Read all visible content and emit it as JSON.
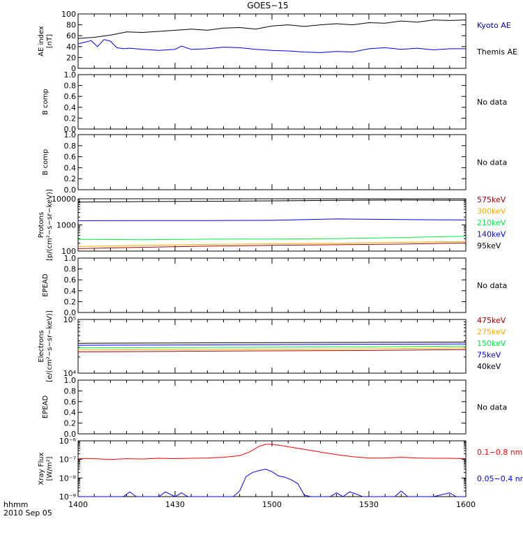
{
  "title": "GOES−15",
  "footer": {
    "time_format": "hhmm",
    "date": "2010 Sep 05"
  },
  "colors": {
    "black": "#000000",
    "blue": "#0000ff",
    "red": "#ff0000",
    "darkred": "#aa0000",
    "orange": "#ffaa00",
    "green": "#00ee44",
    "ae_kyoto": "#0000cc"
  },
  "no_data_text": "No data",
  "chart_data": [
    {
      "type": "line",
      "ylabel": [
        "AE index",
        "[nT]"
      ],
      "ylim": [
        0,
        100
      ],
      "yscale": "linear",
      "yticks": [
        0,
        20,
        40,
        60,
        80,
        100
      ],
      "ytick_labels": [
        "0",
        "20",
        "40",
        "60",
        "80",
        "100"
      ],
      "x_time": [
        "1400",
        "1430",
        "1500",
        "1530",
        "1600"
      ],
      "legend": [
        {
          "label": "Kyoto AE",
          "color": "#0000cc"
        },
        {
          "label": "Themis AE",
          "color": "#000000"
        }
      ],
      "series": [
        {
          "color": "#000000",
          "x": [
            1400,
            1405,
            1410,
            1415,
            1420,
            1425,
            1430,
            1435,
            1440,
            1445,
            1450,
            1455,
            1500,
            1505,
            1510,
            1515,
            1520,
            1525,
            1530,
            1535,
            1540,
            1545,
            1550,
            1555,
            1600
          ],
          "y": [
            55,
            57,
            61,
            67,
            66,
            68,
            70,
            72,
            70,
            74,
            75,
            72,
            78,
            80,
            77,
            80,
            82,
            80,
            84,
            83,
            87,
            85,
            89,
            88,
            89
          ]
        },
        {
          "color": "#0000ff",
          "x": [
            1400,
            1402,
            1404,
            1406,
            1408,
            1410,
            1412,
            1414,
            1416,
            1420,
            1425,
            1430,
            1432,
            1435,
            1440,
            1445,
            1450,
            1455,
            1500,
            1505,
            1510,
            1515,
            1520,
            1525,
            1530,
            1535,
            1540,
            1545,
            1550,
            1555,
            1600
          ],
          "y": [
            45,
            48,
            51,
            40,
            53,
            50,
            38,
            36,
            37,
            35,
            33,
            35,
            41,
            35,
            36,
            39,
            38,
            35,
            33,
            32,
            30,
            29,
            31,
            30,
            36,
            38,
            35,
            37,
            34,
            36,
            36
          ]
        }
      ]
    },
    {
      "type": "line",
      "ylabel": [
        "B comp"
      ],
      "ylim": [
        0,
        1
      ],
      "yscale": "linear",
      "yticks": [
        0,
        0.2,
        0.4,
        0.6,
        0.8,
        1.0
      ],
      "ytick_labels": [
        "0.0",
        "0.2",
        "0.4",
        "0.6",
        "0.8",
        "1.0"
      ],
      "x_time": [
        "1400",
        "1430",
        "1500",
        "1530",
        "1600"
      ],
      "no_data": true,
      "series": []
    },
    {
      "type": "line",
      "ylabel": [
        "B comp"
      ],
      "ylim": [
        0,
        1
      ],
      "yscale": "linear",
      "yticks": [
        0,
        0.2,
        0.4,
        0.6,
        0.8,
        1.0
      ],
      "ytick_labels": [
        "0.0",
        "0.2",
        "0.4",
        "0.6",
        "0.8",
        "1.0"
      ],
      "x_time": [
        "1400",
        "1430",
        "1500",
        "1530",
        "1600"
      ],
      "no_data": true,
      "series": []
    },
    {
      "type": "line",
      "ylabel": [
        "Protons",
        "[p/(cm²−s−sr−keV)]"
      ],
      "ylim": [
        100,
        10000
      ],
      "yscale": "log",
      "yticks": [
        100,
        1000,
        10000
      ],
      "ytick_labels": [
        "100",
        "1000",
        "10000"
      ],
      "x_time": [
        "1400",
        "1430",
        "1500",
        "1530",
        "1600"
      ],
      "legend": [
        {
          "label": "575keV",
          "color": "#aa0000"
        },
        {
          "label": "300keV",
          "color": "#ffaa00"
        },
        {
          "label": "210keV",
          "color": "#00ee44"
        },
        {
          "label": "140keV",
          "color": "#0000ff"
        },
        {
          "label": "95keV",
          "color": "#000000"
        }
      ],
      "series": [
        {
          "color": "#000000",
          "x": [
            1400,
            1420,
            1440,
            1500,
            1520,
            1540,
            1600
          ],
          "y": [
            7500,
            7800,
            8000,
            8300,
            8700,
            9000,
            8800
          ]
        },
        {
          "color": "#0000ff",
          "x": [
            1400,
            1420,
            1440,
            1500,
            1520,
            1540,
            1600
          ],
          "y": [
            1450,
            1460,
            1470,
            1500,
            1700,
            1600,
            1550
          ]
        },
        {
          "color": "#00ee44",
          "x": [
            1400,
            1420,
            1440,
            1500,
            1520,
            1540,
            1600
          ],
          "y": [
            280,
            270,
            285,
            290,
            300,
            330,
            370
          ]
        },
        {
          "color": "#ffaa00",
          "x": [
            1400,
            1420,
            1440,
            1500,
            1520,
            1540,
            1600
          ],
          "y": [
            150,
            165,
            180,
            190,
            200,
            215,
            235
          ]
        },
        {
          "color": "#aa0000",
          "x": [
            1400,
            1420,
            1440,
            1500,
            1520,
            1540,
            1600
          ],
          "y": [
            125,
            140,
            155,
            165,
            175,
            185,
            205
          ]
        }
      ]
    },
    {
      "type": "line",
      "ylabel": [
        "EPEAD"
      ],
      "ylim": [
        0,
        1
      ],
      "yscale": "linear",
      "yticks": [
        0,
        0.2,
        0.4,
        0.6,
        0.8,
        1.0
      ],
      "ytick_labels": [
        "0.0",
        "0.2",
        "0.4",
        "0.6",
        "0.8",
        "1.0"
      ],
      "x_time": [
        "1400",
        "1430",
        "1500",
        "1530",
        "1600"
      ],
      "no_data": true,
      "series": []
    },
    {
      "type": "line",
      "ylabel": [
        "Electrons",
        "[e/(cm²−s−sr−keV)]"
      ],
      "ylim": [
        10000,
        100000
      ],
      "yscale": "log",
      "yticks": [
        10000,
        100000
      ],
      "ytick_labels": [
        "10⁴",
        "10⁵"
      ],
      "x_time": [
        "1400",
        "1430",
        "1500",
        "1530",
        "1600"
      ],
      "legend": [
        {
          "label": "475keV",
          "color": "#aa0000"
        },
        {
          "label": "275keV",
          "color": "#ffaa00"
        },
        {
          "label": "150keV",
          "color": "#00ee44"
        },
        {
          "label": "75keV",
          "color": "#0000ff"
        },
        {
          "label": "40keV",
          "color": "#000000"
        }
      ],
      "series": [
        {
          "color": "#000000",
          "x": [
            1400,
            1430,
            1500,
            1530,
            1600
          ],
          "y": [
            36000,
            36500,
            37000,
            37500,
            38000
          ]
        },
        {
          "color": "#0000ff",
          "x": [
            1400,
            1430,
            1500,
            1530,
            1600
          ],
          "y": [
            33000,
            33500,
            34000,
            34500,
            35000
          ]
        },
        {
          "color": "#00ee44",
          "x": [
            1400,
            1430,
            1500,
            1530,
            1600
          ],
          "y": [
            29500,
            30000,
            30500,
            31000,
            32000
          ]
        },
        {
          "color": "#ffaa00",
          "x": [
            1400,
            1430,
            1500,
            1530,
            1600
          ],
          "y": [
            27000,
            27500,
            28000,
            28500,
            29500
          ]
        },
        {
          "color": "#aa0000",
          "x": [
            1400,
            1430,
            1500,
            1530,
            1600
          ],
          "y": [
            25000,
            25500,
            26000,
            26500,
            27500
          ]
        }
      ]
    },
    {
      "type": "line",
      "ylabel": [
        "EPEAD"
      ],
      "ylim": [
        0,
        1
      ],
      "yscale": "linear",
      "yticks": [
        0,
        0.2,
        0.4,
        0.6,
        0.8,
        1.0
      ],
      "ytick_labels": [
        "0.0",
        "0.2",
        "0.4",
        "0.6",
        "0.8",
        "1.0"
      ],
      "x_time": [
        "1400",
        "1430",
        "1500",
        "1530",
        "1600"
      ],
      "no_data": true,
      "series": []
    },
    {
      "type": "line",
      "ylabel": [
        "Xray Flux",
        "[W/m²]"
      ],
      "ylim": [
        1e-09,
        1e-06
      ],
      "yscale": "log",
      "yticks": [
        1e-09,
        1e-08,
        1e-07,
        1e-06
      ],
      "ytick_labels": [
        "10⁻⁹",
        "10⁻⁸",
        "10⁻⁷",
        "10⁻⁶"
      ],
      "x_time": [
        "1400",
        "1430",
        "1500",
        "1530",
        "1600"
      ],
      "show_xtick_labels": true,
      "legend": [
        {
          "label": "0.1−0.8 nm",
          "color": "#ff0000"
        },
        {
          "label": "0.05−0.4 nm",
          "color": "#0000ff"
        }
      ],
      "series": [
        {
          "color": "#ff0000",
          "x": [
            1400,
            1405,
            1410,
            1415,
            1420,
            1425,
            1430,
            1435,
            1440,
            1445,
            1450,
            1453,
            1456,
            1458,
            1500,
            1503,
            1506,
            1510,
            1515,
            1520,
            1525,
            1530,
            1535,
            1540,
            1545,
            1550,
            1555,
            1600
          ],
          "y": [
            1.1e-07,
            1.1e-07,
            1e-07,
            1.1e-07,
            1.05e-07,
            1.15e-07,
            1.1e-07,
            1.15e-07,
            1.2e-07,
            1.3e-07,
            1.6e-07,
            2.5e-07,
            5e-07,
            6.5e-07,
            6.5e-07,
            5.5e-07,
            4.5e-07,
            3.5e-07,
            2.5e-07,
            1.8e-07,
            1.4e-07,
            1.2e-07,
            1.2e-07,
            1.3e-07,
            1.2e-07,
            1.15e-07,
            1.15e-07,
            1.1e-07
          ]
        },
        {
          "color": "#0000ff",
          "x": [
            1400,
            1410,
            1414,
            1416,
            1418,
            1420,
            1423,
            1425,
            1427,
            1430,
            1432,
            1434,
            1436,
            1438,
            1440,
            1445,
            1448,
            1450,
            1452,
            1454,
            1456,
            1458,
            1500,
            1502,
            1504,
            1506,
            1508,
            1510,
            1512,
            1514,
            1516,
            1518,
            1520,
            1522,
            1524,
            1526,
            1528,
            1530,
            1535,
            1538,
            1540,
            1542,
            1545,
            1550,
            1555,
            1557,
            1559,
            1600
          ],
          "y": [
            1e-09,
            1e-09,
            1e-09,
            1.8e-09,
            1e-09,
            1e-09,
            1e-09,
            1e-09,
            1.8e-09,
            1e-09,
            1.6e-09,
            1e-09,
            1e-09,
            1e-09,
            1e-09,
            1e-09,
            1e-09,
            2e-09,
            1.2e-08,
            2e-08,
            2.5e-08,
            3e-08,
            2.2e-08,
            1.3e-08,
            1.1e-08,
            8e-09,
            5e-09,
            1.2e-09,
            1e-09,
            1e-09,
            1e-09,
            1e-09,
            1.6e-09,
            1e-09,
            1.8e-09,
            1.4e-09,
            1e-09,
            1e-09,
            1e-09,
            1e-09,
            2e-09,
            1e-09,
            1e-09,
            1e-09,
            1.6e-09,
            1e-09,
            1e-09,
            1e-09
          ]
        }
      ]
    }
  ]
}
